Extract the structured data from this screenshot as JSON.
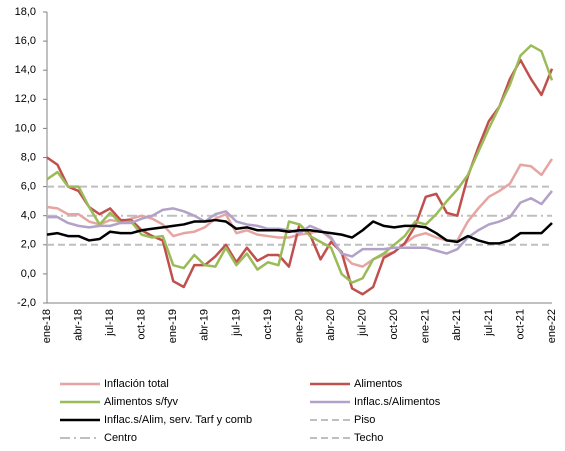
{
  "chart_data": {
    "type": "line",
    "categories": [
      "ene-18",
      null,
      null,
      "abr-18",
      null,
      null,
      "jul-18",
      null,
      null,
      "oct-18",
      null,
      null,
      "ene-19",
      null,
      null,
      "abr-19",
      null,
      null,
      "jul-19",
      null,
      null,
      "oct-19",
      null,
      null,
      "ene-20",
      null,
      null,
      "abr-20",
      null,
      null,
      "jul-20",
      null,
      null,
      "oct-20",
      null,
      null,
      "ene-21",
      null,
      null,
      "abr-21",
      null,
      null,
      "jul-21",
      null,
      null,
      "oct-21",
      null,
      null,
      "ene-22"
    ],
    "ylim": [
      -2,
      18
    ],
    "yticks": [
      {
        "value": -2,
        "label": "-2,0"
      },
      {
        "value": 0,
        "label": "0,0"
      },
      {
        "value": 2,
        "label": "2,0"
      },
      {
        "value": 4,
        "label": "4,0"
      },
      {
        "value": 6,
        "label": "6,0"
      },
      {
        "value": 8,
        "label": "8,0"
      },
      {
        "value": 10,
        "label": "10,0"
      },
      {
        "value": 12,
        "label": "12,0"
      },
      {
        "value": 14,
        "label": "14,0"
      },
      {
        "value": 16,
        "label": "16,0"
      },
      {
        "value": 18,
        "label": "18,0"
      }
    ],
    "series": [
      {
        "name": "Inflación total",
        "color": "#e6a5a3",
        "values": [
          4.6,
          4.5,
          4.1,
          4.1,
          3.6,
          3.4,
          3.7,
          3.6,
          3.8,
          4.0,
          3.8,
          3.4,
          2.6,
          2.8,
          2.9,
          3.2,
          3.8,
          4.1,
          2.8,
          3.0,
          2.7,
          2.6,
          2.5,
          2.5,
          2.7,
          2.8,
          3.0,
          2.4,
          1.4,
          0.7,
          0.5,
          1.0,
          1.3,
          1.5,
          2.1,
          2.6,
          2.8,
          2.5,
          2.3,
          2.3,
          3.6,
          4.5,
          5.3,
          5.7,
          6.2,
          7.5,
          7.4,
          6.8,
          7.9
        ]
      },
      {
        "name": "Alimentos",
        "color": "#c0504d",
        "values": [
          8.0,
          7.5,
          6.0,
          5.7,
          4.6,
          4.1,
          4.5,
          3.7,
          3.7,
          3.0,
          2.6,
          2.3,
          -0.5,
          -0.9,
          0.6,
          0.6,
          1.2,
          2.0,
          0.8,
          1.8,
          0.9,
          1.3,
          1.3,
          0.5,
          3.4,
          2.7,
          1.0,
          2.2,
          1.5,
          -1.0,
          -1.4,
          -0.9,
          1.1,
          1.5,
          2.1,
          3.3,
          5.3,
          5.5,
          4.2,
          4.0,
          6.7,
          8.7,
          10.5,
          11.5,
          13.4,
          14.7,
          13.4,
          12.3,
          14.1
        ]
      },
      {
        "name": "Alimentos s/fyv",
        "color": "#9bbb59",
        "values": [
          6.5,
          7.0,
          6.0,
          6.0,
          4.6,
          3.4,
          4.2,
          3.5,
          3.6,
          2.7,
          2.5,
          2.6,
          0.6,
          0.4,
          1.3,
          0.6,
          0.5,
          1.8,
          0.6,
          1.4,
          0.3,
          0.8,
          0.6,
          3.6,
          3.4,
          2.6,
          2.2,
          1.8,
          0.0,
          -0.6,
          -0.3,
          1.0,
          1.4,
          2.0,
          2.6,
          3.6,
          3.4,
          4.1,
          5.0,
          5.8,
          6.8,
          8.4,
          10.0,
          11.5,
          13.0,
          15.0,
          15.7,
          15.3,
          13.3
        ]
      },
      {
        "name": "Inflac.s/Alimentos",
        "color": "#b3a2c7",
        "values": [
          3.9,
          3.9,
          3.5,
          3.3,
          3.2,
          3.3,
          3.3,
          3.5,
          3.5,
          3.8,
          4.0,
          4.4,
          4.5,
          4.3,
          4.0,
          3.6,
          4.1,
          4.3,
          3.6,
          3.4,
          3.3,
          3.1,
          3.1,
          3.0,
          2.8,
          3.3,
          3.0,
          2.5,
          1.4,
          1.2,
          1.7,
          1.7,
          1.7,
          1.8,
          1.8,
          1.8,
          1.8,
          1.6,
          1.4,
          1.7,
          2.5,
          3.0,
          3.4,
          3.6,
          3.9,
          4.9,
          5.2,
          4.8,
          5.7
        ]
      },
      {
        "name": "Inflac.s/Alim, serv. Tarf y comb",
        "color": "#000000",
        "values": [
          2.7,
          2.8,
          2.6,
          2.6,
          2.3,
          2.4,
          2.9,
          2.8,
          2.8,
          3.0,
          3.1,
          3.2,
          3.3,
          3.4,
          3.6,
          3.6,
          3.7,
          3.6,
          3.1,
          3.2,
          3.0,
          3.0,
          3.0,
          2.9,
          3.0,
          3.0,
          2.9,
          2.8,
          2.7,
          2.5,
          3.0,
          3.6,
          3.3,
          3.2,
          3.3,
          3.3,
          3.2,
          2.8,
          2.3,
          2.2,
          2.6,
          2.3,
          2.1,
          2.1,
          2.3,
          2.8,
          2.8,
          2.8,
          3.5
        ]
      }
    ],
    "reference_lines": [
      {
        "name": "Piso",
        "value": 2,
        "color": "#bfbfbf",
        "dash": "dashed"
      },
      {
        "name": "Centro",
        "value": 4,
        "color": "#bfbfbf",
        "dash": "dashdot"
      },
      {
        "name": "Techo",
        "value": 6,
        "color": "#bfbfbf",
        "dash": "dashed"
      }
    ]
  }
}
